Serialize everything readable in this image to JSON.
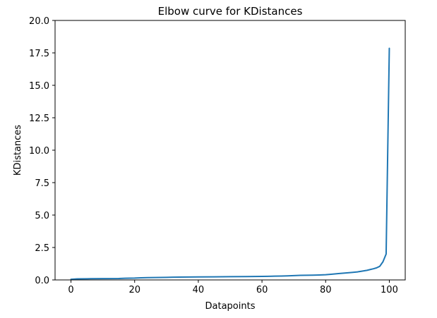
{
  "chart_data": {
    "type": "line",
    "title": "Elbow curve for KDistances",
    "xlabel": "Datapoints",
    "ylabel": "KDistances",
    "xlim": [
      -5,
      105
    ],
    "ylim": [
      0,
      20
    ],
    "xticks": [
      0,
      20,
      40,
      60,
      80,
      100
    ],
    "yticks": [
      0.0,
      2.5,
      5.0,
      7.5,
      10.0,
      12.5,
      15.0,
      17.5,
      20.0
    ],
    "ytick_labels": [
      "0.0",
      "2.5",
      "5.0",
      "7.5",
      "10.0",
      "12.5",
      "15.0",
      "17.5",
      "20.0"
    ],
    "grid": false,
    "series": [
      {
        "color": "#1f77b4",
        "x": [
          0,
          2,
          5,
          10,
          15,
          17,
          20,
          22,
          24,
          28,
          30,
          32,
          34,
          40,
          45,
          50,
          55,
          60,
          62,
          64,
          66,
          68,
          70,
          72,
          74,
          76,
          78,
          80,
          82,
          84,
          86,
          88,
          90,
          91,
          92,
          93,
          94,
          95,
          96,
          97,
          98,
          99,
          100
        ],
        "y": [
          0.05,
          0.08,
          0.09,
          0.1,
          0.11,
          0.13,
          0.14,
          0.16,
          0.18,
          0.19,
          0.2,
          0.21,
          0.22,
          0.23,
          0.24,
          0.25,
          0.26,
          0.27,
          0.28,
          0.29,
          0.3,
          0.31,
          0.33,
          0.35,
          0.36,
          0.37,
          0.38,
          0.4,
          0.44,
          0.49,
          0.53,
          0.57,
          0.62,
          0.66,
          0.7,
          0.74,
          0.8,
          0.86,
          0.93,
          1.05,
          1.4,
          2.0,
          17.85
        ]
      }
    ]
  }
}
